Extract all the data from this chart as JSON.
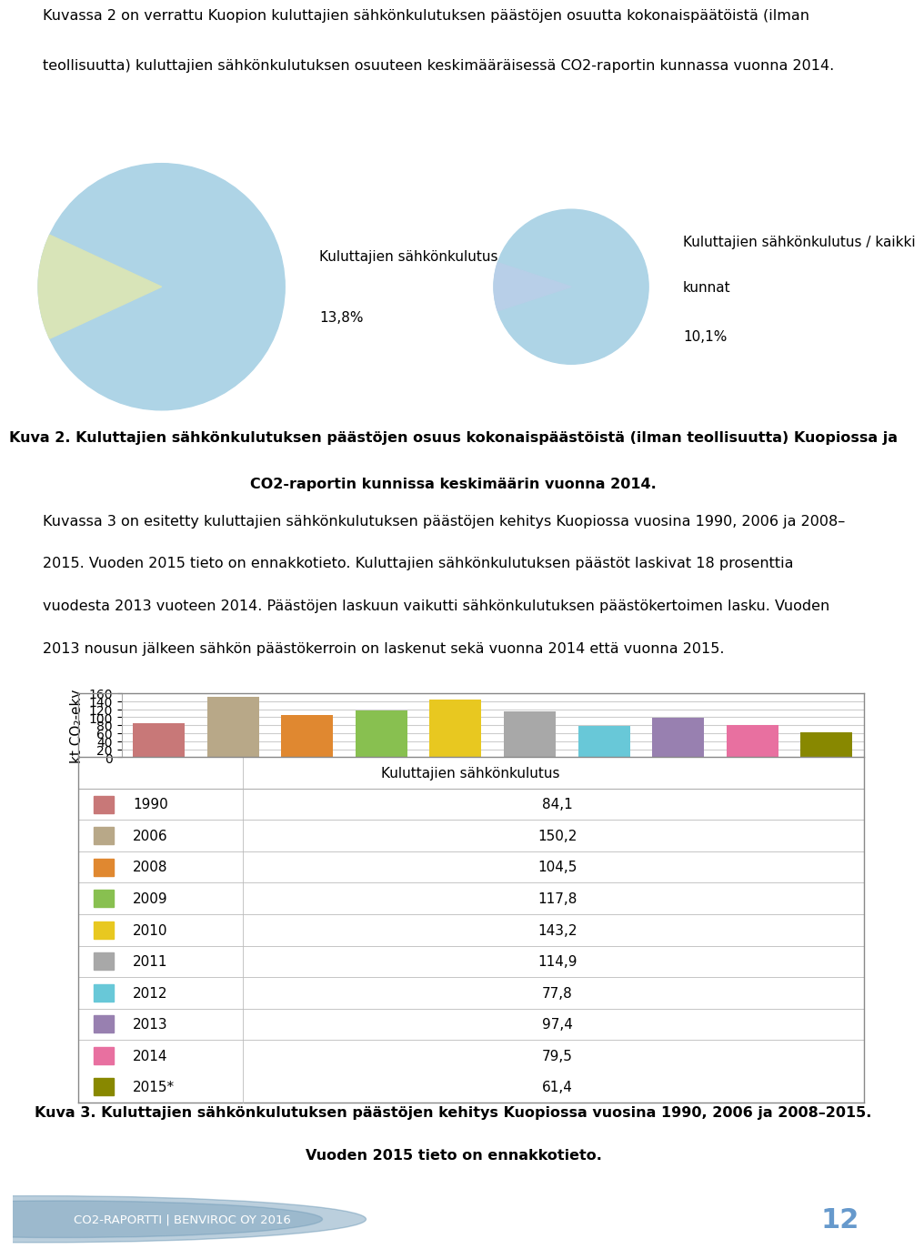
{
  "intro_text_lines": [
    "Kuvassa 2 on verrattu Kuopion kuluttajien sähkönkulutuksen päästöjen osuutta kokonaispäätöistä (ilman",
    "teollisuutta) kuluttajien sähkönkulutuksen osuuteen keskimääräisessä CO2-raportin kunnassa vuonna 2014."
  ],
  "pie1_value": 13.8,
  "pie1_label_line1": "Kuluttajien sähkönkulutus",
  "pie1_label_line2": "13,8%",
  "pie1_color_main": "#aed4e6",
  "pie1_color_slice": "#d8e4b8",
  "pie2_value": 10.1,
  "pie2_label_line1": "Kuluttajien sähkönkulutus / kaikki",
  "pie2_label_line2": "kunnat",
  "pie2_label_line3": "10,1%",
  "pie2_color_main": "#aed4e6",
  "pie2_color_slice": "#b8cfe8",
  "fig2_caption_line1": "Kuva 2. Kuluttajien sähkönkulutuksen päästöjen osuus kokonaispäästöistä (ilman teollisuutta) Kuopiossa ja",
  "fig2_caption_line2": "CO2-raportin kunnissa keskimäärin vuonna 2014.",
  "body_text_lines": [
    "Kuvassa 3 on esitetty kuluttajien sähkönkulutuksen päästöjen kehitys Kuopiossa vuosina 1990, 2006 ja 2008–",
    "2015. Vuoden 2015 tieto on ennakkotieto. Kuluttajien sähkönkulutuksen päästöt laskivat 18 prosenttia",
    "vuodesta 2013 vuoteen 2014. Päästöjen laskuun vaikutti sähkönkulutuksen päästökertoimen lasku. Vuoden",
    "2013 nousun jälkeen sähkön päästökerroin on laskenut sekä vuonna 2014 että vuonna 2015."
  ],
  "bar_years": [
    "1990",
    "2006",
    "2008",
    "2009",
    "2010",
    "2011",
    "2012",
    "2013",
    "2014",
    "2015*"
  ],
  "bar_values": [
    84.1,
    150.2,
    104.5,
    117.8,
    143.2,
    114.9,
    77.8,
    97.4,
    79.5,
    61.4
  ],
  "bar_colors": [
    "#c87878",
    "#b8a888",
    "#e08830",
    "#88c050",
    "#e8c820",
    "#a8a8a8",
    "#68c8d8",
    "#9880b0",
    "#e870a0",
    "#888800"
  ],
  "bar_xlabel": "Kuluttajien sähkönkulutus",
  "bar_ylabel": "kt CO₂-ekv",
  "bar_ylim": [
    0,
    160
  ],
  "bar_yticks": [
    0,
    20,
    40,
    60,
    80,
    100,
    120,
    140,
    160
  ],
  "table_header": "Kuluttajien sähkönkulutus",
  "table_values_str": [
    "84,1",
    "150,2",
    "104,5",
    "117,8",
    "143,2",
    "114,9",
    "77,8",
    "97,4",
    "79,5",
    "61,4"
  ],
  "fig3_caption_line1": "Kuva 3. Kuluttajien sähkönkulutuksen päästöjen kehitys Kuopiossa vuosina 1990, 2006 ja 2008–2015.",
  "fig3_caption_line2": "Vuoden 2015 tieto on ennakkotieto.",
  "footer_text": "CO2-RAPORTTI | BENVIROC OY 2016",
  "footer_page": "12",
  "footer_bg": "#3d6080",
  "background_color": "#ffffff"
}
